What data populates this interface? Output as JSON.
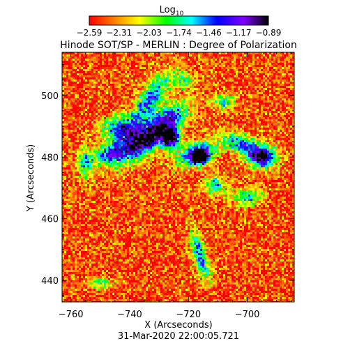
{
  "chart_data": {
    "type": "heatmap",
    "title": "Hinode SOT/SP - MERLIN : Degree of Polarization",
    "xlabel": "X (Arcseconds)",
    "ylabel": "Y (Arcseconds)",
    "timestamp": "31-Mar-2020 22:00:05.721",
    "xlim": [
      -763,
      -684
    ],
    "ylim": [
      433,
      514
    ],
    "x_ticks": [
      -760,
      -740,
      -720,
      -700
    ],
    "y_ticks": [
      440,
      460,
      480,
      500
    ],
    "grid": false,
    "colorbar": {
      "label_base": "Log",
      "label_sub": "10",
      "ticks": [
        "-2.59",
        "-2.31",
        "-2.03",
        "-1.74",
        "-1.46",
        "-1.17",
        "-0.89"
      ],
      "range": [
        -2.59,
        -0.89
      ],
      "colormap": [
        "#ff0000",
        "#ff8000",
        "#ffff00",
        "#00ff00",
        "#00ffff",
        "#0000ff",
        "#8000ff",
        "#000000"
      ]
    },
    "background_level": -2.45,
    "features": [
      {
        "x": -733,
        "y": 499,
        "sx": 7.0,
        "sy": 2.4,
        "angle": 55,
        "peak": 1.05
      },
      {
        "x": -728,
        "y": 491,
        "sx": 6.5,
        "sy": 3.0,
        "angle": 40,
        "peak": 1.15
      },
      {
        "x": -737,
        "y": 484,
        "sx": 7.0,
        "sy": 3.0,
        "angle": 35,
        "peak": 1.2
      },
      {
        "x": -743,
        "y": 489,
        "sx": 4.0,
        "sy": 3.0,
        "angle": 0,
        "peak": 1.15
      },
      {
        "x": -726,
        "y": 486,
        "sx": 2.2,
        "sy": 2.2,
        "angle": 0,
        "peak": 1.5
      },
      {
        "x": -747,
        "y": 481,
        "sx": 3.5,
        "sy": 2.0,
        "angle": 20,
        "peak": 1.0
      },
      {
        "x": -717,
        "y": 481,
        "sx": 5.0,
        "sy": 2.5,
        "angle": 20,
        "peak": 1.25
      },
      {
        "x": -716,
        "y": 480,
        "sx": 2.0,
        "sy": 1.6,
        "angle": 0,
        "peak": 1.4
      },
      {
        "x": -695,
        "y": 480,
        "sx": 3.2,
        "sy": 2.6,
        "angle": 0,
        "peak": 1.55
      },
      {
        "x": -702,
        "y": 484,
        "sx": 4.5,
        "sy": 2.0,
        "angle": -20,
        "peak": 1.05
      },
      {
        "x": -711,
        "y": 471,
        "sx": 2.5,
        "sy": 2.0,
        "angle": 0,
        "peak": 0.85
      },
      {
        "x": -700,
        "y": 467,
        "sx": 3.5,
        "sy": 2.0,
        "angle": 0,
        "peak": 0.8
      },
      {
        "x": -716,
        "y": 448,
        "sx": 1.6,
        "sy": 5.5,
        "angle": 15,
        "peak": 1.05
      },
      {
        "x": -755,
        "y": 478,
        "sx": 2.0,
        "sy": 3.5,
        "angle": 0,
        "peak": 0.8
      },
      {
        "x": -722,
        "y": 505,
        "sx": 2.5,
        "sy": 2.0,
        "angle": 0,
        "peak": 0.7
      },
      {
        "x": -708,
        "y": 498,
        "sx": 2.5,
        "sy": 2.0,
        "angle": 0,
        "peak": 0.75
      },
      {
        "x": -750,
        "y": 439,
        "sx": 3.0,
        "sy": 1.2,
        "angle": 0,
        "peak": 0.7
      }
    ]
  }
}
